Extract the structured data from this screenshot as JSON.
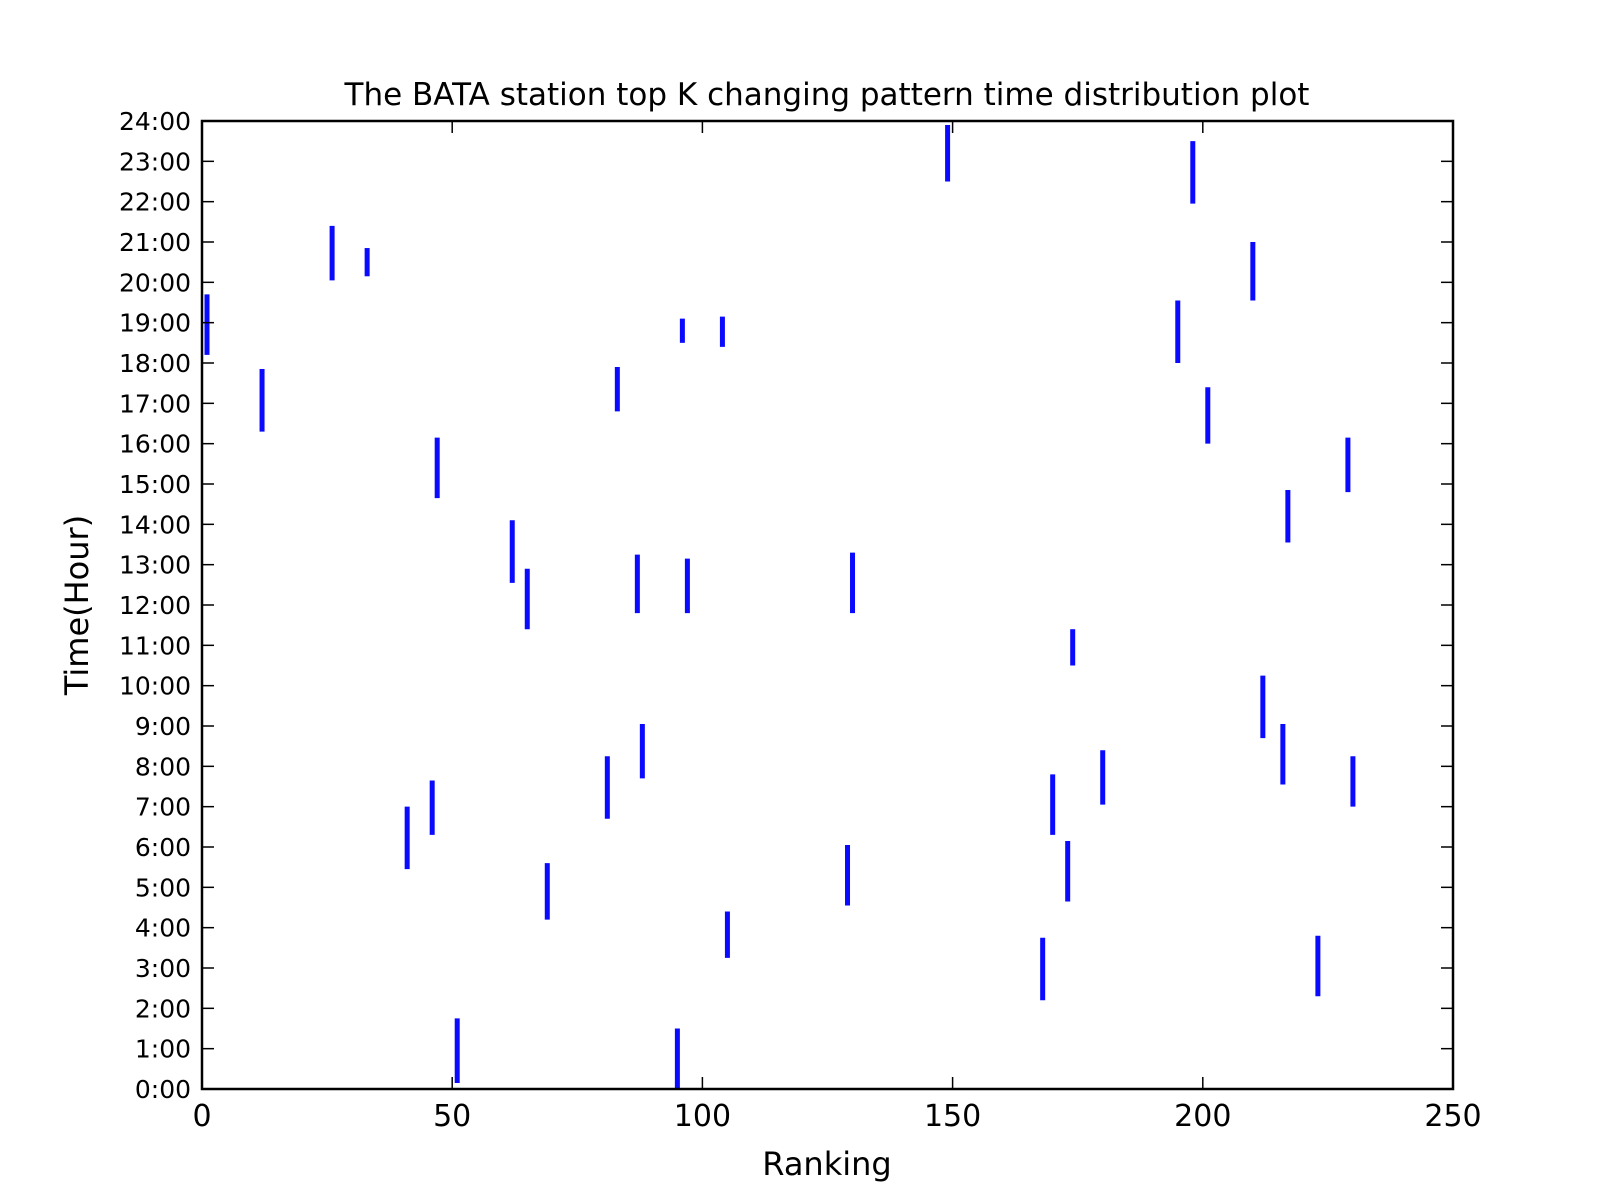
{
  "chart_data": {
    "type": "bar",
    "title": "The BATA station top K changing pattern time distribution plot",
    "xlabel": "Ranking",
    "ylabel": "Time(Hour)",
    "xlim": [
      0,
      250
    ],
    "ylim": [
      0,
      24
    ],
    "x_ticks": [
      "0",
      "50",
      "100",
      "150",
      "200",
      "250"
    ],
    "y_ticks": [
      "0:00",
      "1:00",
      "2:00",
      "3:00",
      "4:00",
      "5:00",
      "6:00",
      "7:00",
      "8:00",
      "9:00",
      "10:00",
      "11:00",
      "12:00",
      "13:00",
      "14:00",
      "15:00",
      "16:00",
      "17:00",
      "18:00",
      "19:00",
      "20:00",
      "21:00",
      "22:00",
      "23:00",
      "24:00"
    ],
    "grid": false,
    "color": "#0a0aff",
    "segments": [
      {
        "x": 1,
        "y_start": 18.2,
        "y_end": 19.7
      },
      {
        "x": 12,
        "y_start": 16.3,
        "y_end": 17.85
      },
      {
        "x": 26,
        "y_start": 20.05,
        "y_end": 21.4
      },
      {
        "x": 33,
        "y_start": 20.15,
        "y_end": 20.85
      },
      {
        "x": 41,
        "y_start": 5.45,
        "y_end": 7.0
      },
      {
        "x": 46,
        "y_start": 6.3,
        "y_end": 7.65
      },
      {
        "x": 47,
        "y_start": 14.65,
        "y_end": 16.15
      },
      {
        "x": 51,
        "y_start": 0.15,
        "y_end": 1.75
      },
      {
        "x": 62,
        "y_start": 12.55,
        "y_end": 14.1
      },
      {
        "x": 65,
        "y_start": 11.4,
        "y_end": 12.9
      },
      {
        "x": 69,
        "y_start": 4.2,
        "y_end": 5.6
      },
      {
        "x": 81,
        "y_start": 6.7,
        "y_end": 8.25
      },
      {
        "x": 83,
        "y_start": 16.8,
        "y_end": 17.9
      },
      {
        "x": 87,
        "y_start": 11.8,
        "y_end": 13.25
      },
      {
        "x": 88,
        "y_start": 7.7,
        "y_end": 9.05
      },
      {
        "x": 95,
        "y_start": 0.0,
        "y_end": 1.5
      },
      {
        "x": 96,
        "y_start": 18.5,
        "y_end": 19.1
      },
      {
        "x": 97,
        "y_start": 11.8,
        "y_end": 13.15
      },
      {
        "x": 104,
        "y_start": 18.4,
        "y_end": 19.15
      },
      {
        "x": 105,
        "y_start": 3.25,
        "y_end": 4.4
      },
      {
        "x": 129,
        "y_start": 4.55,
        "y_end": 6.05
      },
      {
        "x": 130,
        "y_start": 11.8,
        "y_end": 13.3
      },
      {
        "x": 149,
        "y_start": 22.5,
        "y_end": 23.9
      },
      {
        "x": 168,
        "y_start": 2.2,
        "y_end": 3.75
      },
      {
        "x": 170,
        "y_start": 6.3,
        "y_end": 7.8
      },
      {
        "x": 173,
        "y_start": 4.65,
        "y_end": 6.15
      },
      {
        "x": 174,
        "y_start": 10.5,
        "y_end": 11.4
      },
      {
        "x": 180,
        "y_start": 7.05,
        "y_end": 8.4
      },
      {
        "x": 195,
        "y_start": 18.0,
        "y_end": 19.55
      },
      {
        "x": 198,
        "y_start": 21.95,
        "y_end": 23.5
      },
      {
        "x": 201,
        "y_start": 16.0,
        "y_end": 17.4
      },
      {
        "x": 210,
        "y_start": 19.55,
        "y_end": 21.0
      },
      {
        "x": 212,
        "y_start": 8.7,
        "y_end": 10.25
      },
      {
        "x": 216,
        "y_start": 7.55,
        "y_end": 9.05
      },
      {
        "x": 217,
        "y_start": 13.55,
        "y_end": 14.85
      },
      {
        "x": 223,
        "y_start": 2.3,
        "y_end": 3.8
      },
      {
        "x": 229,
        "y_start": 14.8,
        "y_end": 16.15
      },
      {
        "x": 230,
        "y_start": 7.0,
        "y_end": 8.25
      }
    ]
  }
}
